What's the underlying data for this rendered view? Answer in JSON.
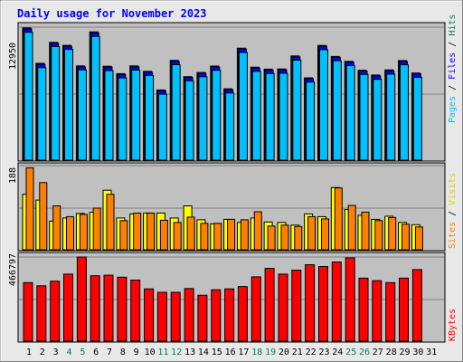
{
  "title": "Daily usage for November 2023",
  "colors": {
    "hits": "#00805c",
    "files": "#0000ff",
    "pages": "#00c0ff",
    "visits": "#ffff00",
    "sites": "#ff8000",
    "kbytes": "#ff0000",
    "weekend": "#00805c",
    "weekday": "#000000",
    "title": "#0000ff",
    "panel": "#c0c0c0",
    "frame_bg": "#e8e8e8"
  },
  "chart_data": [
    {
      "type": "bar",
      "panel": "requests",
      "right_labels": [
        "Pages",
        "Files",
        "Hits"
      ],
      "y_tick": "12950",
      "ylim": [
        0,
        12950
      ],
      "x": [
        "1",
        "2",
        "3",
        "4",
        "5",
        "6",
        "7",
        "8",
        "9",
        "10",
        "11",
        "12",
        "13",
        "14",
        "15",
        "16",
        "17",
        "18",
        "19",
        "20",
        "21",
        "22",
        "23",
        "24",
        "25",
        "26",
        "27",
        "28",
        "29",
        "30",
        "31"
      ],
      "series": [
        {
          "name": "Hits",
          "values": [
            12880,
            9430,
            11470,
            11180,
            9180,
            12490,
            9140,
            8420,
            9180,
            8650,
            6840,
            9720,
            8130,
            8540,
            9160,
            6950,
            10910,
            9060,
            8860,
            8880,
            10150,
            8020,
            11170,
            10100,
            9620,
            8760,
            8290,
            8790,
            9700,
            8480,
            0
          ]
        },
        {
          "name": "Files",
          "values": [
            12880,
            9430,
            11470,
            11180,
            9180,
            12490,
            9140,
            8420,
            9180,
            8650,
            6840,
            9720,
            8130,
            8540,
            9160,
            6950,
            10910,
            9060,
            8860,
            8880,
            10150,
            8020,
            11170,
            10100,
            9620,
            8760,
            8290,
            8790,
            9700,
            8480,
            0
          ]
        },
        {
          "name": "Pages",
          "values": [
            12620,
            9180,
            11230,
            10960,
            8970,
            12230,
            8900,
            8180,
            8940,
            8410,
            6600,
            9470,
            7900,
            8300,
            8920,
            6710,
            10660,
            8820,
            8620,
            8640,
            9910,
            7780,
            10930,
            9860,
            9380,
            8520,
            8050,
            8550,
            9460,
            8240,
            0
          ]
        }
      ]
    },
    {
      "type": "bar",
      "panel": "visitors",
      "right_labels": [
        "Sites",
        "Visits"
      ],
      "y_tick": "188",
      "ylim": [
        0,
        188
      ],
      "x": [
        "1",
        "2",
        "3",
        "4",
        "5",
        "6",
        "7",
        "8",
        "9",
        "10",
        "11",
        "12",
        "13",
        "14",
        "15",
        "16",
        "17",
        "18",
        "19",
        "20",
        "21",
        "22",
        "23",
        "24",
        "25",
        "26",
        "27",
        "28",
        "29",
        "30",
        "31"
      ],
      "series": [
        {
          "name": "Visits",
          "values": [
            124,
            111,
            64,
            71,
            81,
            84,
            133,
            71,
            80,
            82,
            82,
            71,
            98,
            67,
            58,
            68,
            61,
            71,
            62,
            61,
            55,
            80,
            74,
            139,
            90,
            77,
            68,
            75,
            61,
            56,
            0
          ]
        },
        {
          "name": "Sites",
          "values": [
            183,
            150,
            98,
            74,
            79,
            93,
            124,
            65,
            82,
            82,
            66,
            61,
            73,
            59,
            59,
            68,
            67,
            85,
            53,
            55,
            52,
            74,
            69,
            138,
            99,
            84,
            65,
            72,
            57,
            51,
            0
          ]
        }
      ]
    },
    {
      "type": "bar",
      "panel": "kbytes",
      "right_labels": [
        "KBytes"
      ],
      "y_tick": "466797",
      "ylim": [
        0,
        466797
      ],
      "x": [
        "1",
        "2",
        "3",
        "4",
        "5",
        "6",
        "7",
        "8",
        "9",
        "10",
        "11",
        "12",
        "13",
        "14",
        "15",
        "16",
        "17",
        "18",
        "19",
        "20",
        "21",
        "22",
        "23",
        "24",
        "25",
        "26",
        "27",
        "28",
        "29",
        "30",
        "31"
      ],
      "series": [
        {
          "name": "KBytes",
          "values": [
            325000,
            307000,
            333000,
            372000,
            466797,
            363000,
            366000,
            355000,
            339000,
            290000,
            271000,
            271000,
            292000,
            255000,
            285000,
            290000,
            303000,
            357000,
            404000,
            372000,
            394000,
            424000,
            414000,
            439000,
            462000,
            350000,
            336000,
            325000,
            350000,
            397000,
            0
          ]
        }
      ]
    }
  ],
  "weekend_days": [
    "4",
    "5",
    "11",
    "12",
    "18",
    "19",
    "25",
    "26"
  ]
}
